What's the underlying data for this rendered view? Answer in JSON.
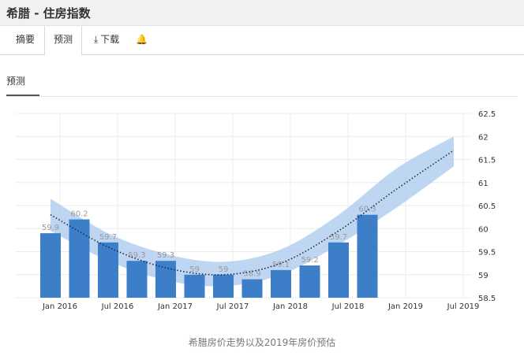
{
  "window": {
    "title": "希腊 - 住房指数"
  },
  "tabs": [
    {
      "label": "摘要",
      "icon": ""
    },
    {
      "label": "预测",
      "icon": ""
    },
    {
      "label": "下载",
      "icon": "download-icon"
    },
    {
      "label": "",
      "icon": "bell-icon"
    }
  ],
  "subtab": {
    "label": "预测"
  },
  "caption": "希腊房价走势以及2019年房价预估",
  "chart_data": {
    "type": "bar",
    "categories": [
      "Jan 2016",
      "Apr 2016",
      "Jul 2016",
      "Oct 2016",
      "Jan 2017",
      "Apr 2017",
      "Jul 2017",
      "Oct 2017",
      "Jan 2018",
      "Apr 2018",
      "Jul 2018",
      "Oct 2018"
    ],
    "values": [
      59.9,
      60.2,
      59.7,
      59.3,
      59.3,
      59,
      59,
      58.9,
      59.1,
      59.2,
      59.7,
      60.3
    ],
    "data_labels": [
      "59.9",
      "60.2",
      "59.7",
      "59.3",
      "59.3",
      "59",
      "59",
      "58.9",
      "59.1",
      "59.2",
      "59.7",
      "60.3"
    ],
    "x_tick_labels": [
      "Jan 2016",
      "Jul 2016",
      "Jan 2017",
      "Jul 2017",
      "Jan 2018",
      "Jul 2018",
      "Jan 2019",
      "Jul 2019"
    ],
    "y_tick_labels": [
      "58.5",
      "59",
      "59.5",
      "60",
      "60.5",
      "61",
      "61.5",
      "62",
      "62.5"
    ],
    "ylim": [
      58.5,
      62.5
    ],
    "trend": {
      "x": [
        "Jan 2016",
        "Jul 2016",
        "Jan 2017",
        "Jul 2017",
        "Jan 2018",
        "Jul 2018",
        "Jan 2019",
        "Jul 2019"
      ],
      "y": [
        60.3,
        59.6,
        59.15,
        59.0,
        59.25,
        59.95,
        60.85,
        61.7
      ]
    },
    "band": {
      "upper": [
        60.65,
        59.9,
        59.45,
        59.28,
        59.55,
        60.3,
        61.3,
        62.0
      ],
      "lower": [
        59.95,
        59.3,
        58.88,
        58.75,
        59.0,
        59.65,
        60.45,
        61.35
      ]
    },
    "grid": true,
    "axis_position": "right",
    "colors": {
      "bar": "#3d7ec8",
      "band": "#a8c8ec",
      "trend": "#1c2c4c",
      "label": "#999999"
    }
  }
}
